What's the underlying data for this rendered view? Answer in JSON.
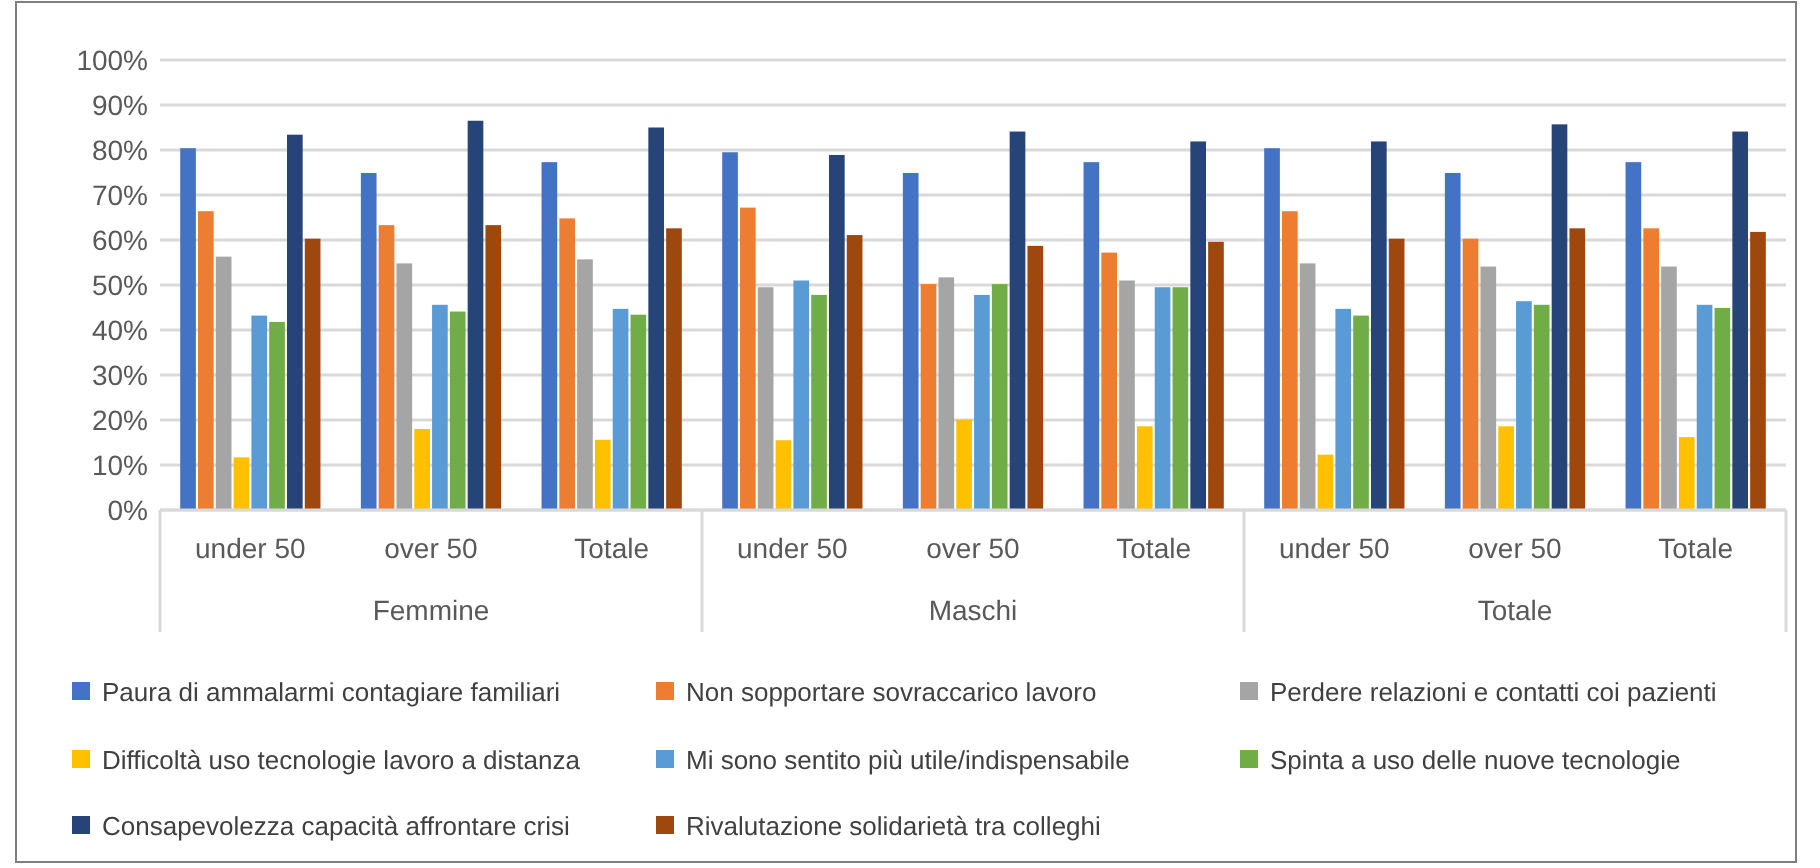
{
  "chart_data": {
    "type": "bar",
    "categories": [
      "under 50",
      "over 50",
      "Totale",
      "under 50",
      "over 50",
      "Totale",
      "under 50",
      "over 50",
      "Totale"
    ],
    "annotations": [
      "Femmine",
      "Maschi",
      "Totale"
    ],
    "series": [
      {
        "name": "Paura di ammalarmi contagiare familiari",
        "color": "#4472c4",
        "values": [
          80.4,
          74.9,
          77.3,
          79.5,
          74.9,
          77.3,
          80.4,
          74.9,
          77.3
        ]
      },
      {
        "name": "Non sopportare sovraccarico lavoro",
        "color": "#ed7d31",
        "values": [
          66.4,
          63.3,
          64.8,
          67.2,
          50.2,
          57.2,
          66.4,
          60.3,
          62.6
        ]
      },
      {
        "name": "Perdere relazioni e contatti coi pazienti",
        "color": "#a5a5a5",
        "values": [
          56.3,
          54.8,
          55.7,
          49.5,
          51.7,
          51.0,
          54.8,
          54.1,
          54.1
        ]
      },
      {
        "name": "Difficoltà uso tecnologie lavoro a distanza",
        "color": "#ffc000",
        "values": [
          11.7,
          18.0,
          15.6,
          15.5,
          20.1,
          18.6,
          12.3,
          18.6,
          16.2
        ]
      },
      {
        "name": "Mi sono sentito più utile/indispensabile",
        "color": "#5b9bd5",
        "values": [
          43.2,
          45.6,
          44.7,
          51.0,
          47.8,
          49.5,
          44.7,
          46.4,
          45.6
        ]
      },
      {
        "name": "Spinta a uso delle nuove tecnologie",
        "color": "#70ad47",
        "values": [
          41.8,
          44.1,
          43.4,
          47.8,
          50.2,
          49.5,
          43.2,
          45.6,
          44.9
        ]
      },
      {
        "name": "Consapevolezza capacità affrontare crisi",
        "color": "#264478",
        "values": [
          83.4,
          86.5,
          85.0,
          78.9,
          84.1,
          81.9,
          81.9,
          85.7,
          84.1
        ]
      },
      {
        "name": "Rivalutazione solidarietà tra colleghi",
        "color": "#9e480e",
        "values": [
          60.3,
          63.3,
          62.6,
          61.1,
          58.7,
          59.6,
          60.3,
          62.6,
          61.8
        ]
      }
    ],
    "ylim": [
      0,
      100
    ],
    "yticks": [
      {
        "value": 0,
        "label": "0%"
      },
      {
        "value": 10,
        "label": "10%"
      },
      {
        "value": 20,
        "label": "20%"
      },
      {
        "value": 30,
        "label": "30%"
      },
      {
        "value": 40,
        "label": "40%"
      },
      {
        "value": 50,
        "label": "50%"
      },
      {
        "value": 60,
        "label": "60%"
      },
      {
        "value": 70,
        "label": "70%"
      },
      {
        "value": 80,
        "label": "80%"
      },
      {
        "value": 90,
        "label": "90%"
      },
      {
        "value": 100,
        "label": "100%"
      }
    ],
    "grid": "y",
    "legend": "bottom"
  }
}
